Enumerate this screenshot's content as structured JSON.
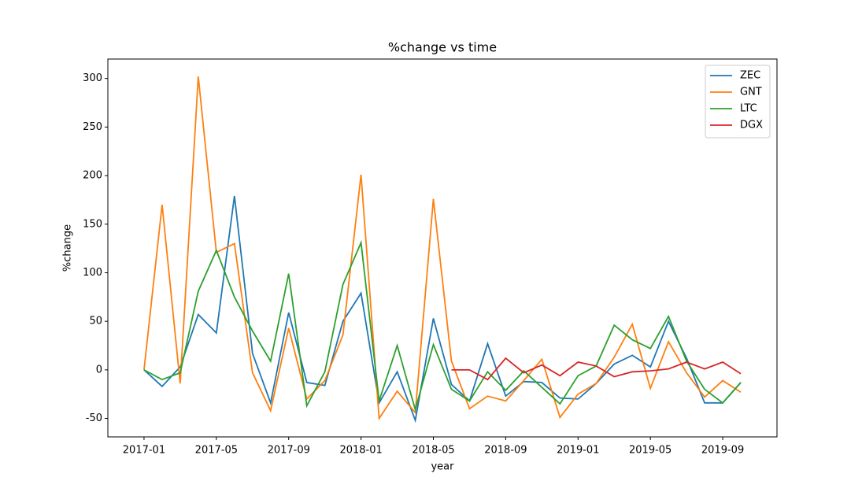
{
  "chart_data": {
    "type": "line",
    "title": "%change vs time",
    "xlabel": "year",
    "ylabel": "%change",
    "x": [
      "2017-01",
      "2017-02",
      "2017-03",
      "2017-04",
      "2017-05",
      "2017-06",
      "2017-07",
      "2017-08",
      "2017-09",
      "2017-10",
      "2017-11",
      "2017-12",
      "2018-01",
      "2018-02",
      "2018-03",
      "2018-04",
      "2018-05",
      "2018-06",
      "2018-07",
      "2018-08",
      "2018-09",
      "2018-10",
      "2018-11",
      "2018-12",
      "2019-01",
      "2019-02",
      "2019-03",
      "2019-04",
      "2019-05",
      "2019-06",
      "2019-07",
      "2019-08",
      "2019-09",
      "2019-10"
    ],
    "series": [
      {
        "name": "ZEC",
        "color": "#1f77b4",
        "values": [
          0,
          -17,
          3,
          57,
          38,
          179,
          17,
          -34,
          59,
          -13,
          -16,
          50,
          79,
          -34,
          -2,
          -52,
          53,
          -15,
          -32,
          27,
          -27,
          -12,
          -13,
          -29,
          -30,
          -14,
          6,
          15,
          3,
          50,
          12,
          -34,
          -34,
          -13
        ]
      },
      {
        "name": "GNT",
        "color": "#ff7f0e",
        "values": [
          0,
          170,
          -14,
          302,
          121,
          130,
          -3,
          -42,
          43,
          -30,
          -11,
          36,
          201,
          -50,
          -22,
          -44,
          176,
          9,
          -40,
          -27,
          -32,
          -11,
          11,
          -49,
          -25,
          -14,
          13,
          47,
          -19,
          29,
          -3,
          -28,
          -11,
          -23
        ]
      },
      {
        "name": "LTC",
        "color": "#2ca02c",
        "values": [
          0,
          -10,
          -3,
          81,
          123,
          75,
          40,
          9,
          99,
          -37,
          -2,
          88,
          131,
          -32,
          25,
          -41,
          26,
          -20,
          -32,
          -2,
          -21,
          -1,
          -18,
          -35,
          -6,
          4,
          46,
          31,
          22,
          55,
          9,
          -20,
          -34,
          -13
        ]
      },
      {
        "name": "DGX",
        "color": "#d62728",
        "values": [
          null,
          null,
          null,
          null,
          null,
          null,
          null,
          null,
          null,
          null,
          null,
          null,
          null,
          null,
          null,
          null,
          null,
          0,
          0,
          -10,
          12,
          -3,
          5,
          -6,
          8,
          4,
          -7,
          -2,
          -1,
          1,
          8,
          1,
          8,
          -4
        ]
      }
    ],
    "xlim": [
      "2016-11",
      "2019-12"
    ],
    "xticks": [
      "2017-01",
      "2017-05",
      "2017-09",
      "2018-01",
      "2018-05",
      "2018-09",
      "2019-01",
      "2019-05",
      "2019-09"
    ],
    "ylim": [
      -69,
      320
    ],
    "yticks": [
      -50,
      0,
      50,
      100,
      150,
      200,
      250,
      300
    ],
    "legend": "upper right",
    "grid": false
  }
}
